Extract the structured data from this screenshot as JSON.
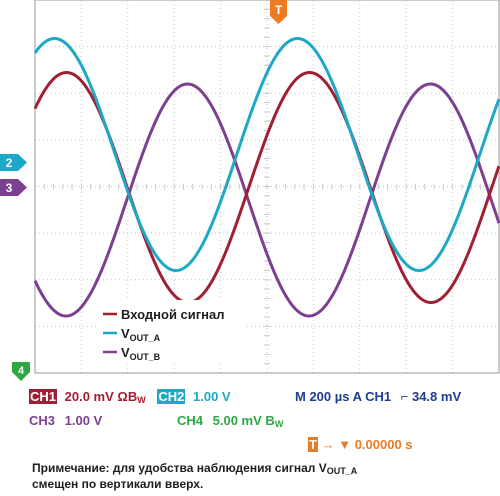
{
  "colors": {
    "input": "#a01f32",
    "vout_a": "#1ca8c6",
    "vout_b": "#7d3f8f",
    "ch4": "#2ea843",
    "trigger": "#ec7b24",
    "grid": "#c8c8c8",
    "timebase": "#1d3d8e"
  },
  "markers": {
    "trigger": "T",
    "ch2": "2",
    "ch3": "3",
    "ch4": "4"
  },
  "legend": {
    "input_label": "Входной сигнал",
    "vout_a_main": "V",
    "vout_a_sub": "OUT_A",
    "vout_b_main": "V",
    "vout_b_sub": "OUT_B"
  },
  "status": {
    "ch1_label": "CH1",
    "ch1_value": "20.0 mV",
    "ch1_impedance": "Ω",
    "ch1_bw": "B",
    "ch1_bw_sub": "W",
    "ch2_label": "CH2",
    "ch2_value": "1.00 V",
    "timebase": "M 200 µs A  CH1",
    "trigger_level": "34.8 mV",
    "ch3_label": "CH3",
    "ch3_value": "1.00 V",
    "ch4_label": "CH4",
    "ch4_value": "5.00 mV",
    "ch4_bw": "B",
    "ch4_bw_sub": "W",
    "trigger_position": "0.00000 s"
  },
  "note": {
    "line1_pre": "Примечание: для удобства наблюдения сигнал V",
    "line1_sub": "OUT_A",
    "line2": "смещен по вертикали вверх."
  }
}
